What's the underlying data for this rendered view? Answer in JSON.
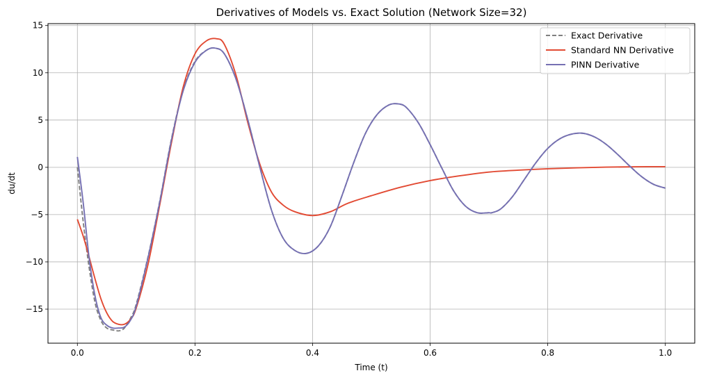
{
  "chart_data": {
    "type": "line",
    "title": "Derivatives of Models vs. Exact Solution (Network Size=32)",
    "xlabel": "Time (t)",
    "ylabel": "du/dt",
    "xlim": [
      -0.05,
      1.05
    ],
    "ylim": [
      -18.6,
      15.2
    ],
    "xticks": [
      0.0,
      0.2,
      0.4,
      0.6,
      0.8,
      1.0
    ],
    "xtick_labels": [
      "0.0",
      "0.2",
      "0.4",
      "0.6",
      "0.8",
      "1.0"
    ],
    "yticks": [
      -15,
      -10,
      -5,
      0,
      5,
      10,
      15
    ],
    "ytick_labels": [
      "−15",
      "−10",
      "−5",
      "0",
      "5",
      "10",
      "15"
    ],
    "grid": true,
    "legend_position": "top-right",
    "series": [
      {
        "name": "Exact Derivative",
        "color": "#7f7f7f",
        "style": "dashed",
        "x": [
          0.0,
          0.01,
          0.02,
          0.03,
          0.04,
          0.05,
          0.06,
          0.07,
          0.075,
          0.08,
          0.09,
          0.1,
          0.12,
          0.14,
          0.16,
          0.18,
          0.2,
          0.22,
          0.235,
          0.25,
          0.27,
          0.29,
          0.31,
          0.33,
          0.35,
          0.37,
          0.39,
          0.41,
          0.43,
          0.45,
          0.47,
          0.49,
          0.51,
          0.53,
          0.547,
          0.56,
          0.58,
          0.6,
          0.62,
          0.64,
          0.66,
          0.68,
          0.7,
          0.705,
          0.72,
          0.74,
          0.76,
          0.78,
          0.8,
          0.82,
          0.84,
          0.86,
          0.88,
          0.9,
          0.92,
          0.94,
          0.96,
          0.98,
          1.0
        ],
        "values": [
          0.0,
          -5.8,
          -10.6,
          -14.3,
          -16.2,
          -17.0,
          -17.2,
          -17.3,
          -17.2,
          -17.0,
          -16.0,
          -14.5,
          -9.5,
          -3.6,
          3.0,
          8.2,
          11.2,
          12.4,
          12.6,
          12.0,
          9.3,
          5.0,
          0.1,
          -4.5,
          -7.5,
          -8.8,
          -9.1,
          -8.3,
          -6.3,
          -3.0,
          0.5,
          3.6,
          5.6,
          6.6,
          6.7,
          6.3,
          4.7,
          2.4,
          -0.1,
          -2.5,
          -4.1,
          -4.8,
          -4.8,
          -4.8,
          -4.4,
          -3.1,
          -1.3,
          0.5,
          2.0,
          3.0,
          3.5,
          3.6,
          3.2,
          2.4,
          1.3,
          0.1,
          -1.0,
          -1.8,
          -2.2
        ]
      },
      {
        "name": "Standard NN Derivative",
        "color": "#e24a33",
        "style": "solid",
        "x": [
          0.0,
          0.01,
          0.02,
          0.03,
          0.04,
          0.05,
          0.06,
          0.07,
          0.08,
          0.09,
          0.1,
          0.12,
          0.14,
          0.16,
          0.18,
          0.2,
          0.22,
          0.237,
          0.25,
          0.27,
          0.29,
          0.31,
          0.33,
          0.35,
          0.37,
          0.4,
          0.43,
          0.46,
          0.5,
          0.55,
          0.6,
          0.65,
          0.7,
          0.75,
          0.8,
          0.85,
          0.9,
          0.95,
          1.0
        ],
        "values": [
          -5.5,
          -7.3,
          -9.5,
          -11.8,
          -13.9,
          -15.4,
          -16.3,
          -16.6,
          -16.6,
          -16.1,
          -14.9,
          -10.3,
          -4.0,
          2.6,
          8.5,
          12.0,
          13.4,
          13.6,
          13.0,
          9.7,
          4.7,
          0.4,
          -2.6,
          -4.0,
          -4.7,
          -5.1,
          -4.7,
          -3.8,
          -3.0,
          -2.1,
          -1.4,
          -0.9,
          -0.5,
          -0.3,
          -0.15,
          -0.05,
          0.02,
          0.06,
          0.07
        ]
      },
      {
        "name": "PINN Derivative",
        "color": "#7570b3",
        "style": "solid",
        "x": [
          0.0,
          0.01,
          0.02,
          0.03,
          0.04,
          0.05,
          0.06,
          0.07,
          0.08,
          0.09,
          0.1,
          0.12,
          0.14,
          0.16,
          0.18,
          0.2,
          0.22,
          0.235,
          0.25,
          0.27,
          0.29,
          0.31,
          0.33,
          0.35,
          0.37,
          0.39,
          0.41,
          0.43,
          0.45,
          0.47,
          0.49,
          0.51,
          0.53,
          0.547,
          0.56,
          0.58,
          0.6,
          0.62,
          0.64,
          0.66,
          0.68,
          0.7,
          0.705,
          0.72,
          0.74,
          0.76,
          0.78,
          0.8,
          0.82,
          0.84,
          0.86,
          0.88,
          0.9,
          0.92,
          0.94,
          0.96,
          0.98,
          1.0
        ],
        "values": [
          1.1,
          -3.8,
          -9.6,
          -13.6,
          -15.9,
          -16.7,
          -17.0,
          -17.0,
          -16.9,
          -16.2,
          -14.7,
          -9.6,
          -3.7,
          2.9,
          8.1,
          11.1,
          12.4,
          12.6,
          12.0,
          9.3,
          5.0,
          0.1,
          -4.5,
          -7.5,
          -8.8,
          -9.1,
          -8.3,
          -6.3,
          -3.0,
          0.5,
          3.6,
          5.6,
          6.6,
          6.7,
          6.3,
          4.7,
          2.4,
          -0.1,
          -2.5,
          -4.1,
          -4.8,
          -4.8,
          -4.8,
          -4.4,
          -3.1,
          -1.3,
          0.5,
          2.0,
          3.0,
          3.5,
          3.6,
          3.2,
          2.4,
          1.3,
          0.1,
          -1.0,
          -1.8,
          -2.2
        ]
      }
    ]
  }
}
